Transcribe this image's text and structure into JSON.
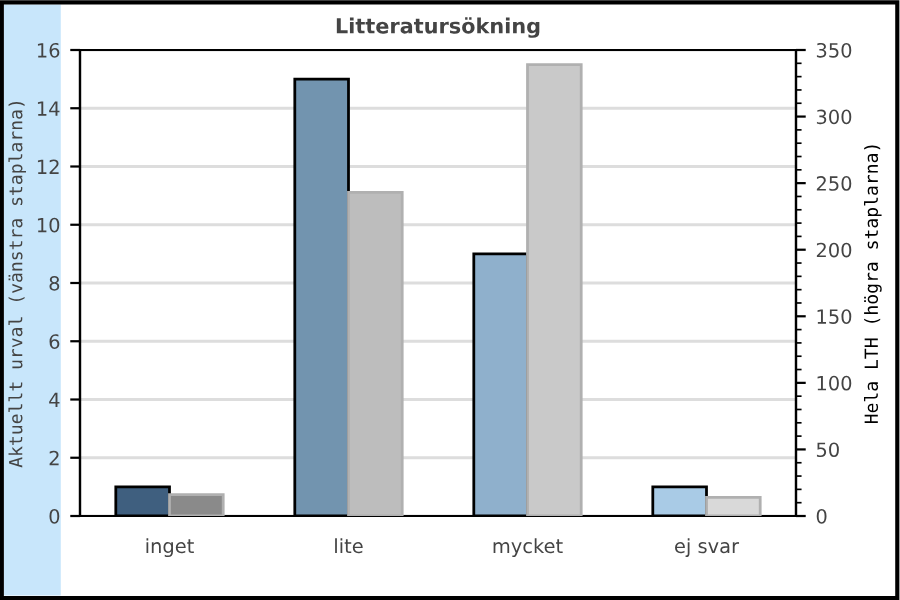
{
  "chart_data": {
    "type": "bar",
    "title": "Litteratursökning",
    "ylabel": "Aktuellt urval (vänstra staplarna)",
    "y2label": "Hela LTH (högra staplarna)",
    "categories": [
      "inget",
      "lite",
      "mycket",
      "ej svar"
    ],
    "series": [
      {
        "colors": [
          "#3f5f7f",
          "#7294af",
          "#8fb0cc",
          "#a9cbe6"
        ],
        "values": [
          1,
          15,
          9,
          1
        ]
      },
      {
        "colors": [
          "#8a8a8a",
          "#bdbdbd",
          "#c9c9c9",
          "#d9d9d9"
        ],
        "values": [
          16,
          243,
          339,
          14
        ],
        "axis": "y2"
      }
    ],
    "ylim": [
      0,
      16
    ],
    "yticks": [
      0,
      2,
      4,
      6,
      8,
      10,
      12,
      14,
      16
    ],
    "y2lim": [
      0,
      350
    ],
    "y2ticks": [
      0,
      50,
      100,
      150,
      200,
      250,
      300,
      350
    ],
    "grid": "y",
    "legend": false
  }
}
